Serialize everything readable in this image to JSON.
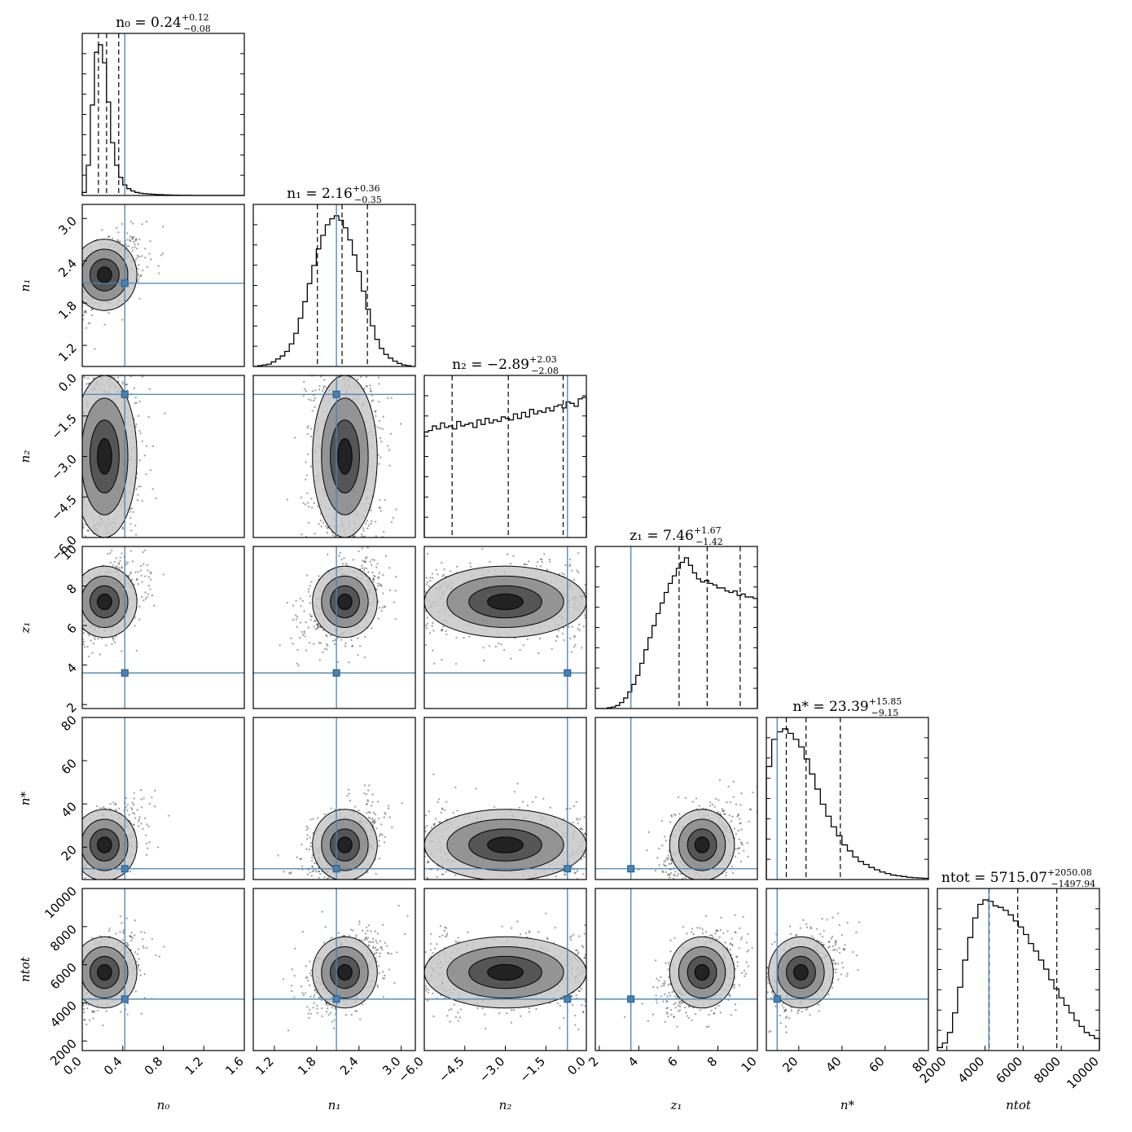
{
  "chart_data": {
    "type": "corner",
    "parameters": [
      {
        "key": "n0",
        "label": "n_0",
        "display": "n₀",
        "range": [
          0.0,
          1.6
        ],
        "ticks": [
          0.0,
          0.4,
          0.8,
          1.2,
          1.6
        ],
        "tick_labels": [
          "0.0",
          "0.4",
          "0.8",
          "1.2",
          "1.6"
        ],
        "truth": 0.42,
        "quantiles": [
          0.16,
          0.24,
          0.36
        ],
        "title": {
          "prefix": "n₀ = 0.24",
          "plus": "+0.12",
          "minus": "−0.08"
        }
      },
      {
        "key": "n1",
        "label": "n_1",
        "display": "n₁",
        "range": [
          0.9,
          3.2
        ],
        "ticks": [
          1.2,
          1.8,
          2.4,
          3.0
        ],
        "tick_labels": [
          "1.2",
          "1.8",
          "2.4",
          "3.0"
        ],
        "truth": 2.08,
        "quantiles": [
          1.81,
          2.16,
          2.52
        ],
        "title": {
          "prefix": "n₁ = 2.16",
          "plus": "+0.36",
          "minus": "−0.35"
        }
      },
      {
        "key": "n2",
        "label": "n_2",
        "display": "n₂",
        "range": [
          -6.0,
          0.0
        ],
        "ticks": [
          -6.0,
          -4.5,
          -3.0,
          -1.5,
          0.0
        ],
        "tick_labels": [
          "−6.0",
          "−4.5",
          "−3.0",
          "−1.5",
          "0.0"
        ],
        "truth": -0.7,
        "quantiles": [
          -4.97,
          -2.89,
          -0.86
        ],
        "title": {
          "prefix": "n₂ = −2.89",
          "plus": "+2.03",
          "minus": "−2.08"
        }
      },
      {
        "key": "z1",
        "label": "z_1",
        "display": "z₁",
        "range": [
          1.8,
          10.0
        ],
        "ticks": [
          2,
          4,
          6,
          8,
          10
        ],
        "tick_labels": [
          "2",
          "4",
          "6",
          "8",
          "10"
        ],
        "truth": 3.6,
        "quantiles": [
          6.04,
          7.46,
          9.13
        ],
        "title": {
          "prefix": "z₁ = 7.46",
          "plus": "+1.67",
          "minus": "−1.42"
        }
      },
      {
        "key": "nstar",
        "label": "n_*",
        "display": "n*",
        "range": [
          5,
          80
        ],
        "ticks": [
          20,
          40,
          60,
          80
        ],
        "tick_labels": [
          "20",
          "40",
          "60",
          "80"
        ],
        "truth": 10,
        "quantiles": [
          14.24,
          23.39,
          39.24
        ],
        "title": {
          "prefix": "n* = 23.39",
          "plus": "+15.85",
          "minus": "−9.15"
        }
      },
      {
        "key": "ntot",
        "label": "n_tot",
        "display": "ntot",
        "range": [
          1500,
          10000
        ],
        "ticks": [
          2000,
          4000,
          6000,
          8000,
          10000
        ],
        "tick_labels": [
          "2000",
          "4000",
          "6000",
          "8000",
          "10000"
        ],
        "truth": 4200,
        "quantiles": [
          4217.13,
          5715.07,
          7765.15
        ],
        "title": {
          "prefix": "ntot = 5715.07",
          "plus": "+2050.08",
          "minus": "−1497.94"
        }
      }
    ],
    "histograms_1d": {
      "n0": [
        0.02,
        0.2,
        0.6,
        0.95,
        1.0,
        0.88,
        0.62,
        0.35,
        0.2,
        0.12,
        0.07,
        0.045,
        0.03,
        0.02,
        0.015,
        0.012,
        0.01,
        0.008,
        0.006,
        0.005,
        0.004,
        0.003,
        0.002,
        0.002,
        0.001,
        0.001,
        0.001,
        0.0,
        0.0,
        0.0,
        0.0,
        0.0,
        0.0,
        0.0,
        0.0,
        0.0,
        0.0,
        0.0,
        0.0,
        0.0
      ],
      "n1": [
        0.0,
        0.005,
        0.01,
        0.015,
        0.03,
        0.05,
        0.07,
        0.1,
        0.15,
        0.22,
        0.32,
        0.43,
        0.55,
        0.67,
        0.78,
        0.87,
        0.94,
        0.98,
        1.0,
        0.97,
        0.92,
        0.84,
        0.74,
        0.63,
        0.5,
        0.38,
        0.27,
        0.18,
        0.12,
        0.08,
        0.055,
        0.035,
        0.02,
        0.01,
        0.005,
        0.0
      ],
      "n2": [
        0.7,
        0.71,
        0.74,
        0.72,
        0.76,
        0.73,
        0.74,
        0.72,
        0.77,
        0.74,
        0.75,
        0.76,
        0.73,
        0.78,
        0.75,
        0.79,
        0.76,
        0.78,
        0.77,
        0.8,
        0.79,
        0.78,
        0.82,
        0.79,
        0.83,
        0.8,
        0.85,
        0.82,
        0.84,
        0.83,
        0.86,
        0.84,
        0.87,
        0.88,
        0.86,
        0.9,
        0.89,
        0.87,
        0.92,
        0.93
      ],
      "z1": [
        0.0,
        0.0,
        0.0,
        0.005,
        0.01,
        0.02,
        0.04,
        0.07,
        0.11,
        0.16,
        0.22,
        0.3,
        0.39,
        0.47,
        0.55,
        0.63,
        0.7,
        0.77,
        0.83,
        0.88,
        0.93,
        0.97,
        1.0,
        0.95,
        0.9,
        0.86,
        0.84,
        0.85,
        0.83,
        0.82,
        0.8,
        0.8,
        0.78,
        0.77,
        0.78,
        0.75,
        0.76,
        0.74,
        0.74,
        0.73
      ],
      "nstar": [
        0.75,
        0.93,
        0.98,
        1.0,
        0.97,
        0.93,
        0.88,
        0.8,
        0.7,
        0.6,
        0.5,
        0.42,
        0.35,
        0.29,
        0.23,
        0.19,
        0.15,
        0.12,
        0.1,
        0.08,
        0.065,
        0.05,
        0.04,
        0.03,
        0.025,
        0.02,
        0.015,
        0.012,
        0.01,
        0.008
      ],
      "ntot": [
        0.02,
        0.05,
        0.12,
        0.25,
        0.42,
        0.6,
        0.75,
        0.88,
        0.97,
        1.0,
        0.99,
        0.96,
        0.95,
        0.93,
        0.9,
        0.86,
        0.82,
        0.77,
        0.71,
        0.66,
        0.6,
        0.54,
        0.47,
        0.41,
        0.35,
        0.3,
        0.25,
        0.2,
        0.16,
        0.12,
        0.1,
        0.08
      ]
    }
  }
}
